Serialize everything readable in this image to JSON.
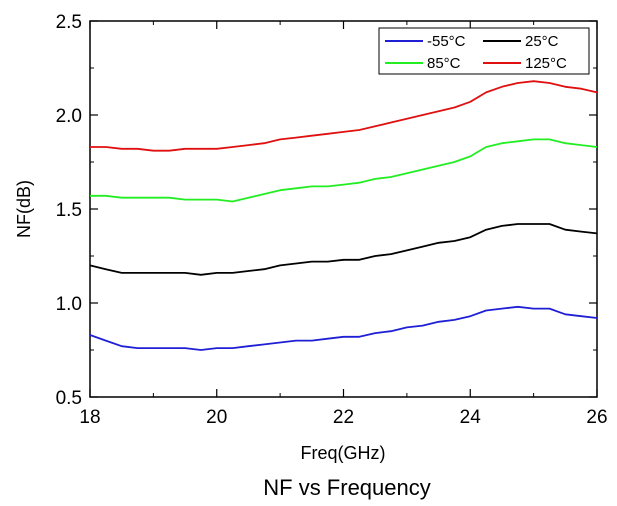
{
  "chart_data": {
    "type": "line",
    "title": "NF vs  Frequency",
    "xlabel": "Freq(GHz)",
    "ylabel": "NF(dB)",
    "xlim": [
      18,
      26
    ],
    "ylim": [
      0.5,
      2.5
    ],
    "xticks": [
      18,
      20,
      22,
      24,
      26
    ],
    "yticks": [
      0.5,
      1.0,
      1.5,
      2.0,
      2.5
    ],
    "xtick_labels": [
      "18",
      "20",
      "22",
      "24",
      "26"
    ],
    "ytick_labels": [
      "0.5",
      "1.0",
      "1.5",
      "2.0",
      "2.5"
    ],
    "grid": false,
    "legend_position": "top-right",
    "x": [
      18.0,
      18.25,
      18.5,
      18.75,
      19.0,
      19.25,
      19.5,
      19.75,
      20.0,
      20.25,
      20.5,
      20.75,
      21.0,
      21.25,
      21.5,
      21.75,
      22.0,
      22.25,
      22.5,
      22.75,
      23.0,
      23.25,
      23.5,
      23.75,
      24.0,
      24.25,
      24.5,
      24.75,
      25.0,
      25.25,
      25.5,
      25.75,
      26.0
    ],
    "series": [
      {
        "name": "-55°C",
        "color": "#1f1fd6",
        "values": [
          0.83,
          0.8,
          0.77,
          0.76,
          0.76,
          0.76,
          0.76,
          0.75,
          0.76,
          0.76,
          0.77,
          0.78,
          0.79,
          0.8,
          0.8,
          0.81,
          0.82,
          0.82,
          0.84,
          0.85,
          0.87,
          0.88,
          0.9,
          0.91,
          0.93,
          0.96,
          0.97,
          0.98,
          0.97,
          0.97,
          0.94,
          0.93,
          0.92
        ]
      },
      {
        "name": "25°C",
        "color": "#000000",
        "values": [
          1.2,
          1.18,
          1.16,
          1.16,
          1.16,
          1.16,
          1.16,
          1.15,
          1.16,
          1.16,
          1.17,
          1.18,
          1.2,
          1.21,
          1.22,
          1.22,
          1.23,
          1.23,
          1.25,
          1.26,
          1.28,
          1.3,
          1.32,
          1.33,
          1.35,
          1.39,
          1.41,
          1.42,
          1.42,
          1.42,
          1.39,
          1.38,
          1.37
        ]
      },
      {
        "name": "85°C",
        "color": "#22ee22",
        "values": [
          1.57,
          1.57,
          1.56,
          1.56,
          1.56,
          1.56,
          1.55,
          1.55,
          1.55,
          1.54,
          1.56,
          1.58,
          1.6,
          1.61,
          1.62,
          1.62,
          1.63,
          1.64,
          1.66,
          1.67,
          1.69,
          1.71,
          1.73,
          1.75,
          1.78,
          1.83,
          1.85,
          1.86,
          1.87,
          1.87,
          1.85,
          1.84,
          1.83
        ]
      },
      {
        "name": "125°C",
        "color": "#e01010",
        "values": [
          1.83,
          1.83,
          1.82,
          1.82,
          1.81,
          1.81,
          1.82,
          1.82,
          1.82,
          1.83,
          1.84,
          1.85,
          1.87,
          1.88,
          1.89,
          1.9,
          1.91,
          1.92,
          1.94,
          1.96,
          1.98,
          2.0,
          2.02,
          2.04,
          2.07,
          2.12,
          2.15,
          2.17,
          2.18,
          2.17,
          2.15,
          2.14,
          2.12
        ]
      }
    ]
  }
}
